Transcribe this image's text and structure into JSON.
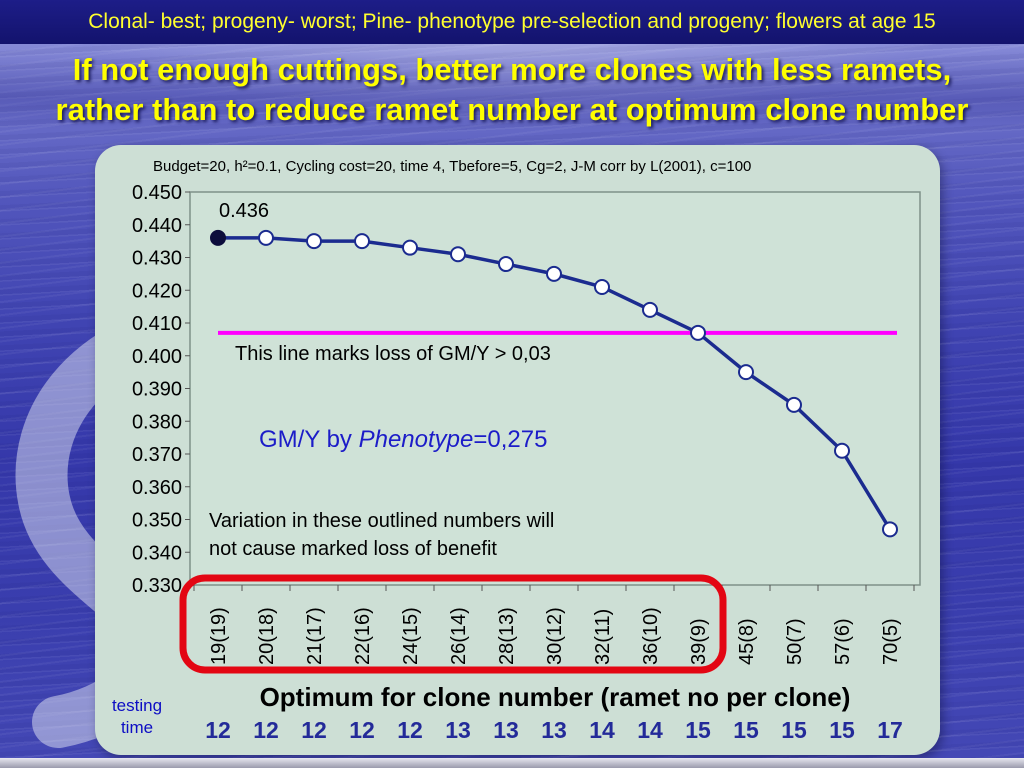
{
  "banner": {
    "text": "Clonal- best; progeny- worst; Pine- phenotype pre-selection and progeny; flowers at age 15"
  },
  "title": {
    "line1": "If not enough cuttings, better more clones with less ramets,",
    "line2": "rather than to reduce ramet number at optimum clone number"
  },
  "chart_data": {
    "type": "line",
    "title": "Budget=20, h²=0.1, Cycling cost=20, time 4, Tbefore=5, Cg=2, J-M corr by L(2001), c=100",
    "categories": [
      "19(19)",
      "20(18)",
      "21(17)",
      "22(16)",
      "24(15)",
      "26(14)",
      "28(13)",
      "30(12)",
      "32(11)",
      "36(10)",
      "39(9)",
      "45(8)",
      "50(7)",
      "57(6)",
      "70(5)"
    ],
    "values": [
      0.436,
      0.436,
      0.435,
      0.435,
      0.433,
      0.431,
      0.428,
      0.425,
      0.421,
      0.414,
      0.407,
      0.395,
      0.385,
      0.371,
      0.347
    ],
    "ylim": [
      0.33,
      0.45
    ],
    "ytick_step": 0.01,
    "ytick_decimals": 3,
    "grid": "off",
    "legend": "none",
    "series_color": "#1b2b8f",
    "marker_fill": "#ffffff",
    "first_marker_fill": "#0d0d3c",
    "point_label": {
      "index": 0,
      "text": "0.436"
    },
    "reference_line": {
      "value": 0.407,
      "color": "#ff00ff",
      "label": "This line marks loss of GM/Y > 0,03"
    },
    "highlight_box": {
      "from_index": 0,
      "to_index": 10,
      "color": "#e30613"
    },
    "annotation_gmy": {
      "prefix": "GM/Y by ",
      "italic": "Phenotype",
      "suffix": "=0,275"
    },
    "annotation_variation": {
      "line1": "Variation in these outlined numbers will",
      "line2": "not cause marked loss of benefit"
    },
    "xlabel": "Optimum for clone number (ramet no per clone)",
    "testing_time": {
      "label_line1": "testing",
      "label_line2": "time",
      "values": [
        "12",
        "12",
        "12",
        "12",
        "12",
        "13",
        "13",
        "13",
        "14",
        "14",
        "15",
        "15",
        "15",
        "15",
        "17"
      ]
    }
  }
}
